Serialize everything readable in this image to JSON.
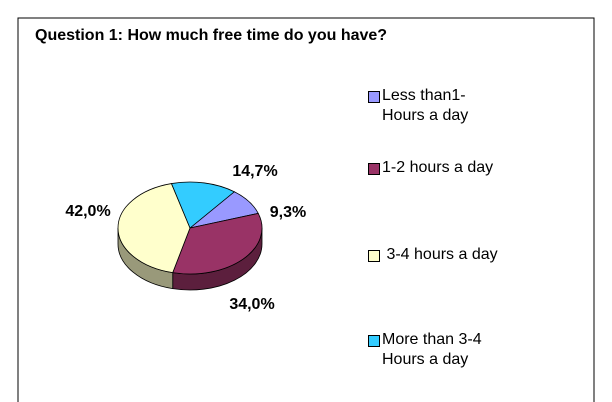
{
  "chart_data": {
    "type": "pie3d",
    "title": "Question 1: How much free time do you have?",
    "categories": [
      "Less than1- Hours a day",
      "1-2 hours a day",
      " 3-4 hours a day",
      "More than 3-4 Hours a day"
    ],
    "values": [
      9.3,
      34.0,
      42.0,
      14.7
    ],
    "value_labels": [
      "9,3%",
      "34,0%",
      "42,0%",
      "14,7%"
    ],
    "colors": [
      "#9999ff",
      "#993366",
      "#ffffcc",
      "#33ccff"
    ],
    "legend": "right"
  }
}
